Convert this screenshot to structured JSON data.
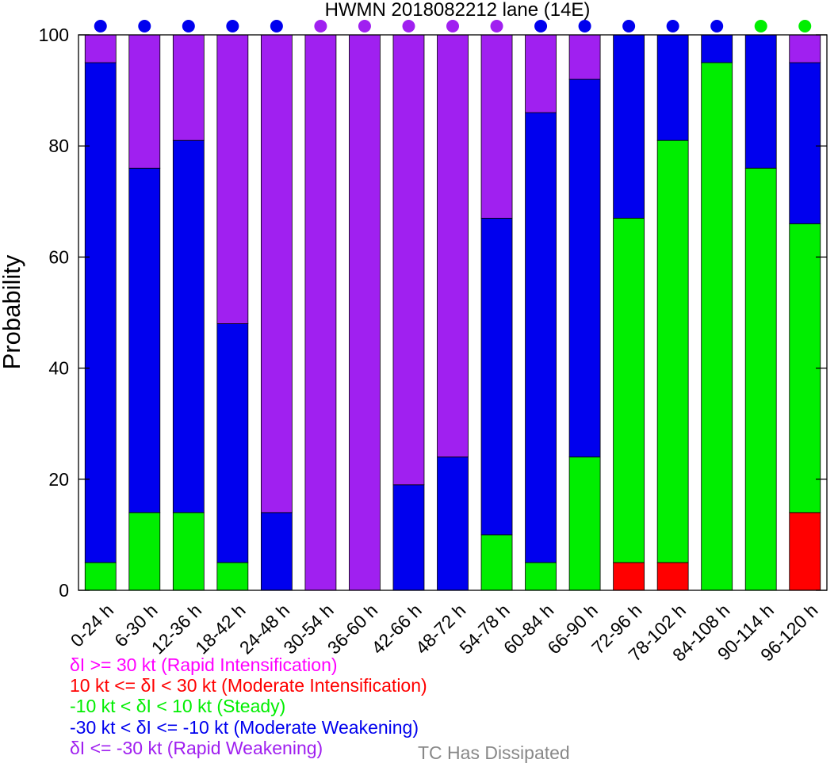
{
  "chart_data": {
    "type": "bar",
    "stacked": true,
    "title": "HWMN 2018082212 lane (14E)",
    "xlabel": "",
    "ylabel": "Probability",
    "ylim": [
      0,
      100
    ],
    "yticks": [
      0,
      20,
      40,
      60,
      80,
      100
    ],
    "grid": false,
    "categories": [
      "0-24 h",
      "6-30 h",
      "12-36 h",
      "18-42 h",
      "24-48 h",
      "30-54 h",
      "36-60 h",
      "42-66 h",
      "48-72 h",
      "54-78 h",
      "60-84 h",
      "66-90 h",
      "72-96 h",
      "78-102 h",
      "84-108 h",
      "90-114 h",
      "96-120 h"
    ],
    "series": [
      {
        "key": "ri",
        "color": "#ff00ff",
        "values": [
          0,
          0,
          0,
          0,
          0,
          0,
          0,
          0,
          0,
          0,
          0,
          0,
          0,
          0,
          0,
          0,
          0
        ]
      },
      {
        "key": "mi",
        "color": "#ff0000",
        "values": [
          0,
          0,
          0,
          0,
          0,
          0,
          0,
          0,
          0,
          0,
          0,
          0,
          5,
          5,
          0,
          0,
          14
        ]
      },
      {
        "key": "steady",
        "color": "#00ee00",
        "values": [
          5,
          14,
          14,
          5,
          0,
          0,
          0,
          0,
          0,
          10,
          5,
          24,
          62,
          76,
          95,
          76,
          52
        ]
      },
      {
        "key": "mw",
        "color": "#0000ee",
        "values": [
          90,
          62,
          67,
          43,
          14,
          0,
          0,
          19,
          24,
          57,
          81,
          68,
          33,
          19,
          5,
          24,
          29
        ]
      },
      {
        "key": "rw",
        "color": "#a020f0",
        "values": [
          5,
          24,
          19,
          52,
          86,
          100,
          100,
          81,
          76,
          33,
          14,
          8,
          0,
          0,
          0,
          0,
          5
        ]
      }
    ],
    "markers": [
      "mw",
      "mw",
      "mw",
      "mw",
      "mw",
      "rw",
      "rw",
      "rw",
      "rw",
      "rw",
      "mw",
      "mw",
      "mw",
      "mw",
      "mw",
      "steady",
      "steady"
    ]
  },
  "legend": [
    {
      "text": "δI >= 30 kt (Rapid Intensification)",
      "color": "#ff00ff"
    },
    {
      "text": "10 kt <= δI < 30 kt (Moderate Intensification)",
      "color": "#ff0000"
    },
    {
      "text": "-10 kt < δI < 10 kt (Steady)",
      "color": "#00ee00"
    },
    {
      "text": "-30 kt < δI <= -10 kt (Moderate Weakening)",
      "color": "#0000ee"
    },
    {
      "text": "δI <= -30 kt (Rapid Weakening)",
      "color": "#a020f0"
    }
  ],
  "dissipated": {
    "text": "TC Has Dissipated",
    "color": "#888888"
  }
}
